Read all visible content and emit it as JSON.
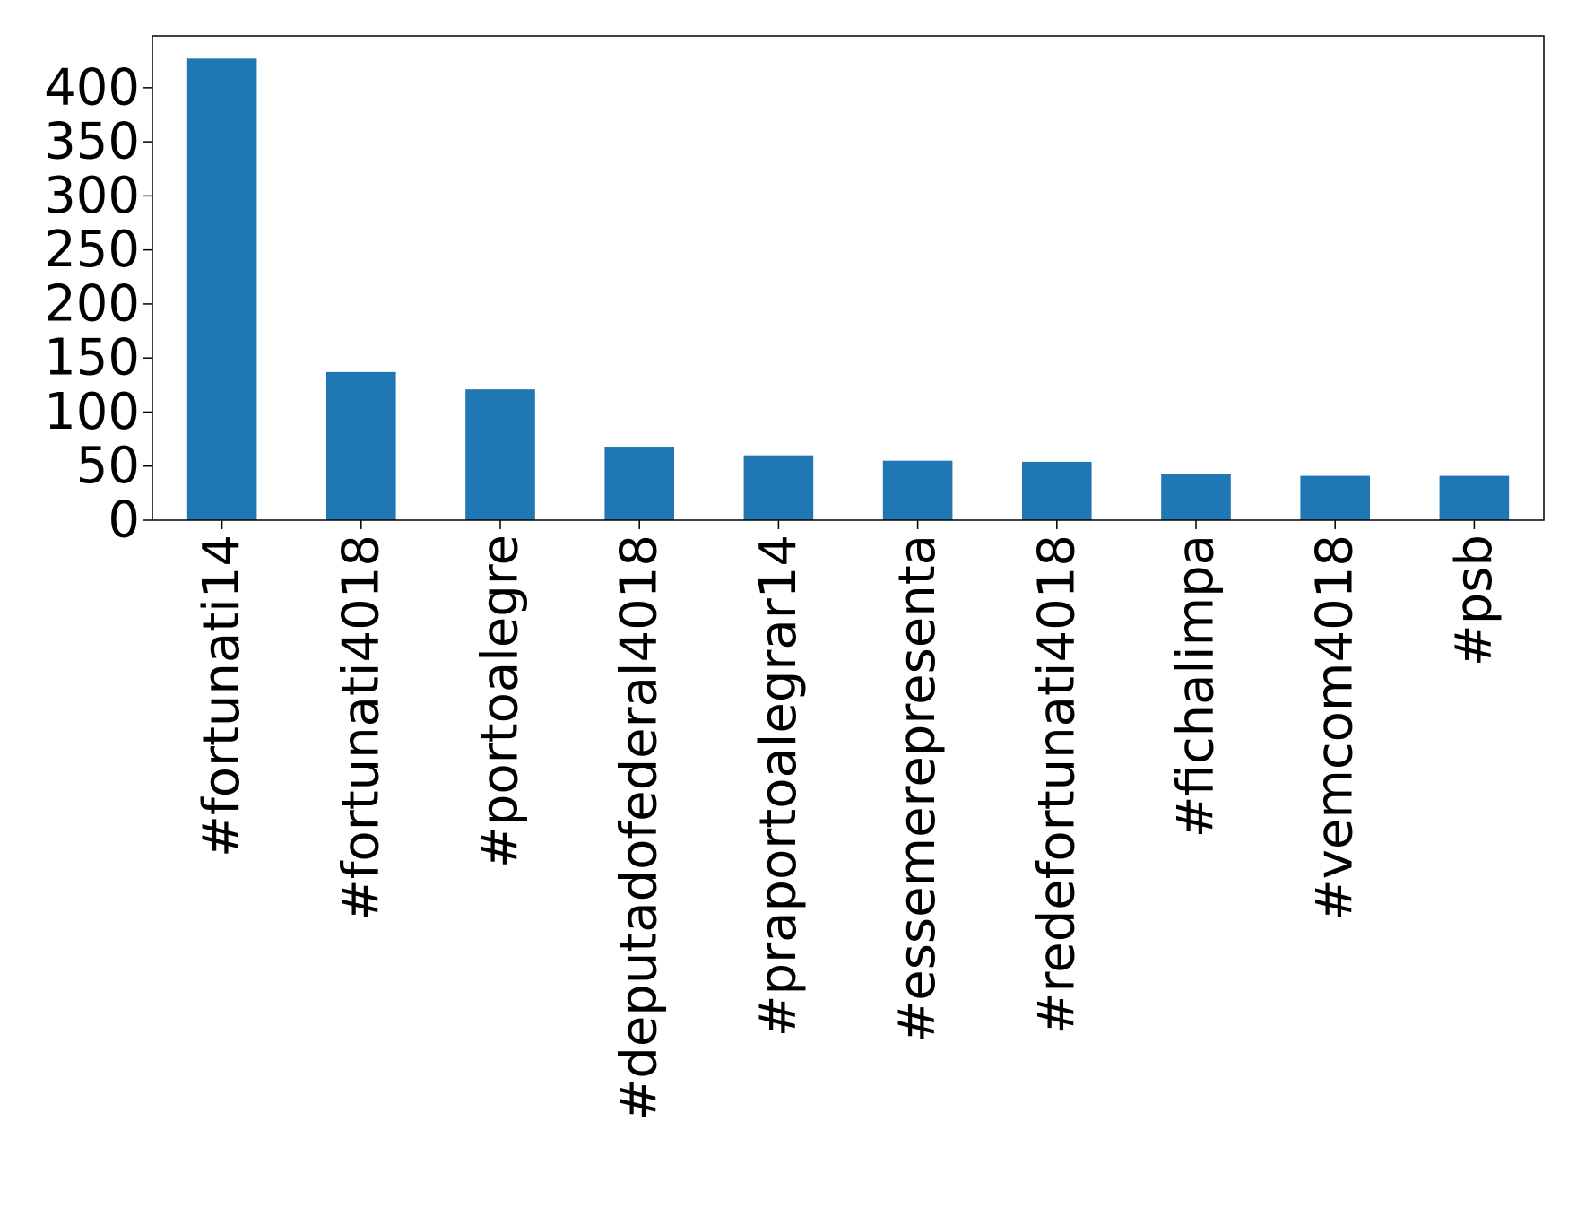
{
  "chart_data": {
    "type": "bar",
    "categories": [
      "#fortunati14",
      "#fortunati4018",
      "#portoalegre",
      "#deputadofederal4018",
      "#praportoalegrar14",
      "#essemerepresenta",
      "#redefortunati4018",
      "#fichalimpa",
      "#vemcom4018",
      "#psb"
    ],
    "values": [
      427,
      137,
      121,
      68,
      60,
      55,
      54,
      43,
      41,
      41
    ],
    "ylim": [
      0,
      448
    ],
    "yticks": [
      0,
      50,
      100,
      150,
      200,
      250,
      300,
      350,
      400
    ],
    "ytick_labels": [
      "0",
      "50",
      "100",
      "150",
      "200",
      "250",
      "300",
      "350",
      "400"
    ],
    "title": "",
    "xlabel": "",
    "ylabel": "",
    "grid": false,
    "colors": {
      "bar": "#1f77b4",
      "axes": "#000000",
      "background": "#ffffff"
    }
  }
}
